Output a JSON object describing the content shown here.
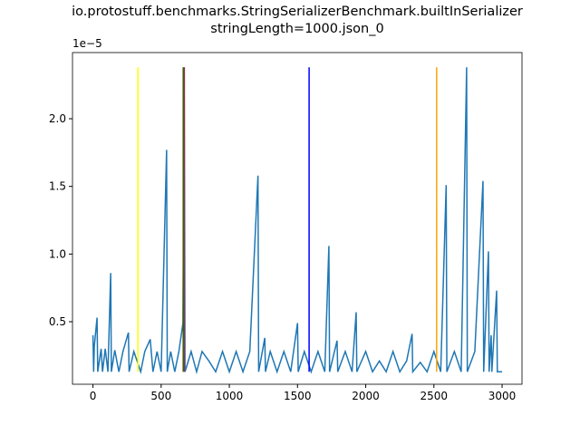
{
  "chart_data": {
    "type": "line",
    "title": [
      "io.protostuff.benchmarks.StringSerializerBenchmark.builtInSerializer",
      "stringLength=1000.json_0"
    ],
    "y_offset_label": "1e−5",
    "xlim": [
      -150,
      3146
    ],
    "ylim": [
      0.038,
      2.489
    ],
    "xticks": [
      0,
      500,
      1000,
      1500,
      2000,
      2500,
      3000
    ],
    "yticks": [
      0.5,
      {
        "value": 1,
        "label": "1.0"
      },
      1.5,
      {
        "value": 2,
        "label": "2.0"
      }
    ],
    "x": [
      0,
      5,
      10,
      30,
      35,
      60,
      70,
      90,
      110,
      130,
      135,
      160,
      190,
      220,
      260,
      265,
      300,
      350,
      380,
      420,
      440,
      470,
      500,
      540,
      545,
      570,
      600,
      630,
      660,
      670,
      675,
      720,
      760,
      800,
      850,
      900,
      950,
      1000,
      1050,
      1100,
      1150,
      1210,
      1215,
      1260,
      1265,
      1300,
      1350,
      1400,
      1450,
      1500,
      1505,
      1550,
      1600,
      1650,
      1700,
      1730,
      1735,
      1790,
      1795,
      1850,
      1900,
      1930,
      1935,
      2000,
      2050,
      2100,
      2150,
      2200,
      2250,
      2300,
      2340,
      2345,
      2400,
      2450,
      2500,
      2550,
      2590,
      2595,
      2650,
      2700,
      2740,
      2745,
      2800,
      2860,
      2865,
      2900,
      2905,
      2920,
      2925,
      2960,
      2965,
      3000
    ],
    "series": [
      {
        "color": "#1f77b4",
        "values": [
          0.4,
          0.13,
          0.32,
          0.53,
          0.13,
          0.3,
          0.13,
          0.3,
          0.13,
          0.86,
          0.13,
          0.29,
          0.13,
          0.28,
          0.42,
          0.13,
          0.28,
          0.13,
          0.28,
          0.37,
          0.13,
          0.28,
          0.13,
          1.77,
          0.13,
          0.28,
          0.13,
          0.28,
          0.49,
          2.38,
          0.13,
          0.28,
          0.13,
          0.28,
          0.21,
          0.13,
          0.28,
          0.13,
          0.28,
          0.13,
          0.28,
          1.58,
          0.13,
          0.38,
          0.13,
          0.28,
          0.13,
          0.28,
          0.13,
          0.49,
          0.13,
          0.28,
          0.13,
          0.28,
          0.13,
          1.06,
          0.13,
          0.36,
          0.13,
          0.28,
          0.13,
          0.57,
          0.13,
          0.28,
          0.13,
          0.21,
          0.13,
          0.28,
          0.13,
          0.21,
          0.41,
          0.13,
          0.2,
          0.13,
          0.28,
          0.13,
          1.51,
          0.13,
          0.28,
          0.13,
          2.38,
          0.13,
          0.28,
          1.54,
          0.13,
          1.02,
          0.13,
          0.4,
          0.13,
          0.73,
          0.13,
          0.13
        ]
      }
    ],
    "vlines": {
      "ymin": 0.13,
      "ymax": 2.38,
      "lines": [
        {
          "x": 330,
          "color": "yellow"
        },
        {
          "x": 662,
          "color": "green"
        },
        {
          "x": 668,
          "color": "#b22222"
        },
        {
          "x": 1585,
          "color": "blue"
        },
        {
          "x": 2520,
          "color": "orange"
        }
      ]
    }
  }
}
